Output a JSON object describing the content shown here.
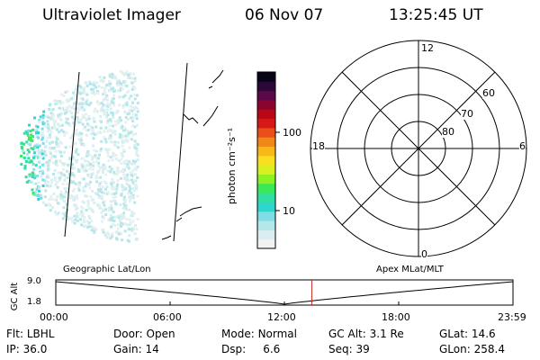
{
  "header": {
    "instrument": "Ultraviolet Imager",
    "date": "06 Nov 07",
    "time": "13:25:45 UT"
  },
  "colorbar": {
    "label": "photon cm⁻²s⁻¹",
    "ticks": [
      {
        "label": "100",
        "value": 100
      },
      {
        "label": "10",
        "value": 10
      }
    ],
    "colors": [
      "#f2f2f2",
      "#d8eef0",
      "#b4e6ea",
      "#80dde6",
      "#2fd6d0",
      "#31e0a0",
      "#3ae85a",
      "#8ef020",
      "#d8f020",
      "#f8e020",
      "#f8b818",
      "#f08818",
      "#e85018",
      "#d81818",
      "#b80818",
      "#8a0430",
      "#5a0848",
      "#2c0838",
      "#0a0418"
    ]
  },
  "polar_grid": {
    "labels": {
      "top": "12",
      "bottom": "0",
      "left": "18",
      "right": "6"
    },
    "latitudes": [
      {
        "label": "60",
        "value": 60
      },
      {
        "label": "70",
        "value": 70
      },
      {
        "label": "80",
        "value": 80
      }
    ]
  },
  "timeline": {
    "ylabel": "GC Alt",
    "yticks": [
      {
        "label": "9.0",
        "value": 9.0
      },
      {
        "label": "1.8",
        "value": 1.8
      }
    ],
    "xticks": [
      "00:00",
      "06:00",
      "12:00",
      "18:00",
      "23:59"
    ],
    "left_caption": "Geographic Lat/Lon",
    "right_caption": "Apex MLat/MLT",
    "current_time": "13:25:45",
    "marker_color": "#cc2222"
  },
  "info": {
    "row1": [
      {
        "key": "Flt:",
        "value": "LBHL"
      },
      {
        "key": "Door:",
        "value": "Open"
      },
      {
        "key": "Mode:",
        "value": "Normal"
      },
      {
        "key": "GC Alt:",
        "value": "3.1 Re"
      },
      {
        "key": "GLat:",
        "value": "14.6"
      }
    ],
    "row2": [
      {
        "key": "IP:",
        "value": "36.0"
      },
      {
        "key": "Gain:",
        "value": "14"
      },
      {
        "key": "Dsp:",
        "value": "6.6"
      },
      {
        "key": "Seq:",
        "value": "39"
      },
      {
        "key": "GLon:",
        "value": "258.4"
      }
    ]
  }
}
